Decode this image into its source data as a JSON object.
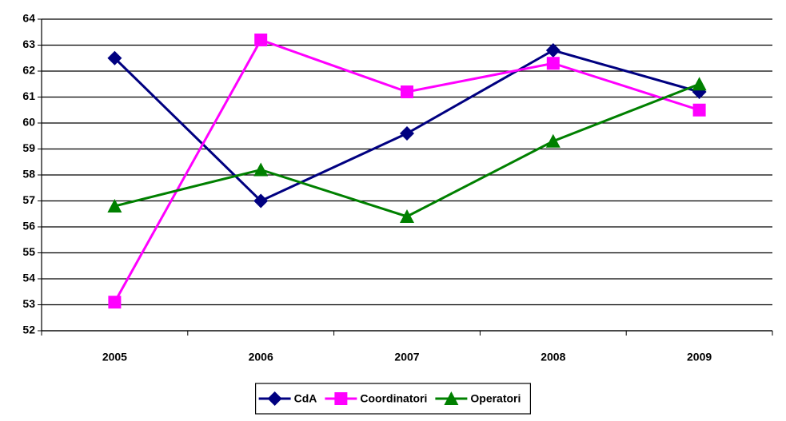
{
  "chart_data": {
    "type": "line",
    "categories": [
      "2005",
      "2006",
      "2007",
      "2008",
      "2009"
    ],
    "series": [
      {
        "name": "CdA",
        "color": "#000080",
        "marker": "diamond",
        "values": [
          62.5,
          57.0,
          59.6,
          62.8,
          61.2
        ]
      },
      {
        "name": "Coordinatori",
        "color": "#ff00ff",
        "marker": "square",
        "values": [
          53.1,
          63.2,
          61.2,
          62.3,
          60.5
        ]
      },
      {
        "name": "Operatori",
        "color": "#008000",
        "marker": "triangle",
        "values": [
          56.8,
          58.2,
          56.4,
          59.3,
          61.5
        ]
      }
    ],
    "ylim": [
      52,
      64
    ],
    "yticks": [
      52,
      53,
      54,
      55,
      56,
      57,
      58,
      59,
      60,
      61,
      62,
      63,
      64
    ],
    "grid": true,
    "legend": "bottom"
  }
}
